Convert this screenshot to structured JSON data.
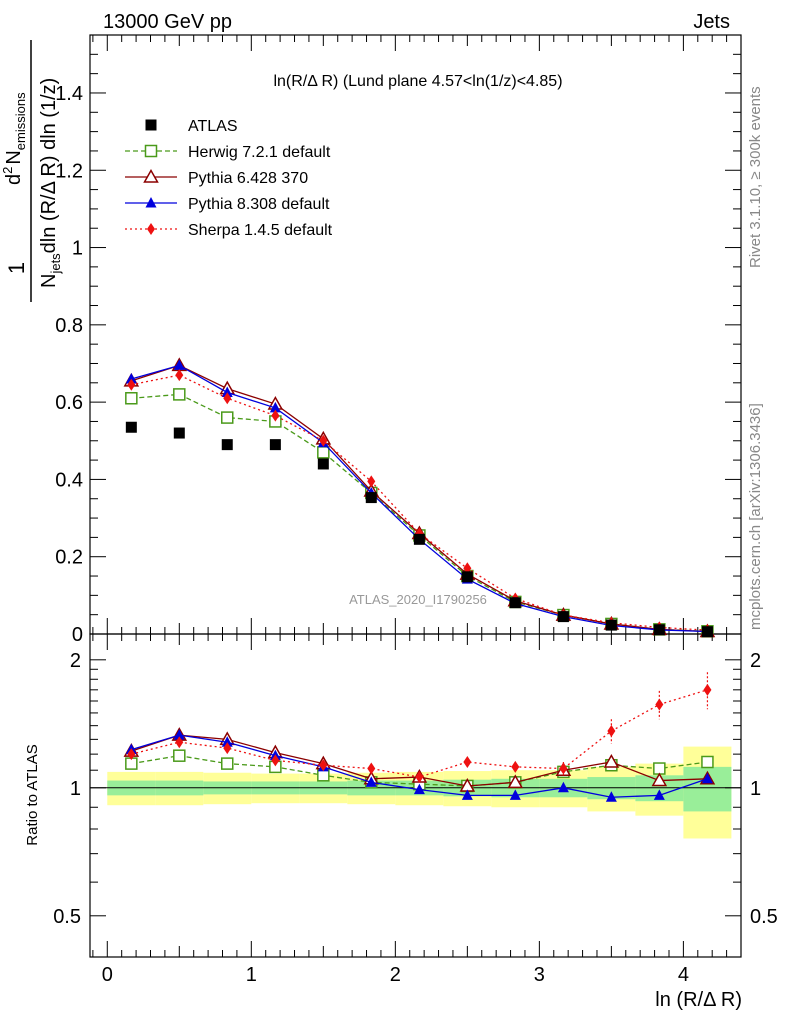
{
  "header": {
    "energy": "13000 GeV pp",
    "process": "Jets",
    "subtitle": "ln(R/Δ R) (Lund plane 4.57<ln(1/z)<4.85)",
    "watermark": "ATLAS_2020_I1790256",
    "rivet": "Rivet 3.1.10, ≥ 300k events",
    "mcplots": "mcplots.cern.ch [arXiv:1306.3436]"
  },
  "chart_data": {
    "type": "line",
    "x": [
      0.167,
      0.5,
      0.833,
      1.167,
      1.5,
      1.833,
      2.167,
      2.5,
      2.833,
      3.167,
      3.5,
      3.833,
      4.167
    ],
    "xlabel": "ln (R/Δ R)",
    "xlim": [
      -0.12,
      4.4
    ],
    "xticks": [
      "0",
      "1",
      "2",
      "3",
      "4"
    ],
    "xtick_values": [
      0,
      1,
      2,
      3,
      4
    ],
    "main": {
      "ylabel_parts": {
        "one": "1",
        "n_jets": "N",
        "n_jets_sub": "jets",
        "dln": "dln (R/Δ R) dln (1/z)",
        "d2": "d",
        "d2_sup": "2",
        "n_em": "N",
        "n_em_sub": "emissions"
      },
      "ylim": [
        0,
        1.55
      ],
      "yticks": [
        "0",
        "0.2",
        "0.4",
        "0.6",
        "0.8",
        "1",
        "1.2",
        "1.4"
      ],
      "ytick_values": [
        0,
        0.2,
        0.4,
        0.6,
        0.8,
        1.0,
        1.2,
        1.4
      ]
    },
    "ratio": {
      "ylabel": "Ratio to ATLAS",
      "ylim": [
        0.4,
        2.3
      ],
      "yticks_left": [
        "0.5",
        "1",
        "2"
      ],
      "yticks_right": [
        "0.5",
        "1",
        "2"
      ],
      "ytick_values": [
        0.5,
        1,
        2
      ],
      "band_inner": [
        [
          0.96,
          1.04
        ],
        [
          0.96,
          1.04
        ],
        [
          0.965,
          1.035
        ],
        [
          0.965,
          1.035
        ],
        [
          0.965,
          1.035
        ],
        [
          0.96,
          1.04
        ],
        [
          0.96,
          1.04
        ],
        [
          0.955,
          1.045
        ],
        [
          0.95,
          1.05
        ],
        [
          0.95,
          1.05
        ],
        [
          0.94,
          1.06
        ],
        [
          0.93,
          1.07
        ],
        [
          0.88,
          1.12
        ]
      ],
      "band_outer": [
        [
          0.91,
          1.09
        ],
        [
          0.91,
          1.09
        ],
        [
          0.915,
          1.085
        ],
        [
          0.92,
          1.08
        ],
        [
          0.92,
          1.08
        ],
        [
          0.915,
          1.085
        ],
        [
          0.91,
          1.09
        ],
        [
          0.905,
          1.095
        ],
        [
          0.9,
          1.1
        ],
        [
          0.9,
          1.1
        ],
        [
          0.88,
          1.12
        ],
        [
          0.86,
          1.14
        ],
        [
          0.76,
          1.25
        ]
      ]
    },
    "series": [
      {
        "name": "ATLAS",
        "color": "#000000",
        "style": "data",
        "marker": "square-filled",
        "values": [
          0.535,
          0.52,
          0.49,
          0.49,
          0.44,
          0.353,
          0.245,
          0.148,
          0.081,
          0.045,
          0.023,
          0.011,
          0.006
        ]
      },
      {
        "name": "Herwig 7.2.1 default",
        "color": "#4a9a1a",
        "style": "dashed",
        "marker": "square-open",
        "values": [
          0.61,
          0.62,
          0.56,
          0.55,
          0.47,
          0.365,
          0.255,
          0.15,
          0.083,
          0.049,
          0.026,
          0.012,
          0.007
        ],
        "ratio": [
          1.14,
          1.19,
          1.14,
          1.12,
          1.07,
          1.03,
          1.02,
          1.01,
          1.03,
          1.09,
          1.13,
          1.11,
          1.15
        ]
      },
      {
        "name": "Pythia 6.428 370",
        "color": "#8b0000",
        "style": "solid",
        "marker": "triangle-open",
        "values": [
          0.655,
          0.695,
          0.635,
          0.595,
          0.505,
          0.37,
          0.26,
          0.155,
          0.086,
          0.049,
          0.026,
          0.012,
          0.0065
        ],
        "ratio": [
          1.22,
          1.33,
          1.3,
          1.21,
          1.14,
          1.05,
          1.06,
          1.01,
          1.03,
          1.1,
          1.15,
          1.04,
          1.05
        ]
      },
      {
        "name": "Pythia 8.308 default",
        "color": "#0000dd",
        "style": "solid",
        "marker": "triangle-filled",
        "values": [
          0.66,
          0.695,
          0.625,
          0.585,
          0.495,
          0.365,
          0.245,
          0.142,
          0.079,
          0.045,
          0.022,
          0.0105,
          0.0065
        ],
        "ratio": [
          1.23,
          1.33,
          1.28,
          1.19,
          1.12,
          1.03,
          0.99,
          0.96,
          0.96,
          1.0,
          0.95,
          0.96,
          1.05
        ]
      },
      {
        "name": "Sherpa 1.4.5 default",
        "color": "#ee1111",
        "style": "dotted",
        "marker": "diamond-filled",
        "values": [
          0.645,
          0.67,
          0.61,
          0.565,
          0.5,
          0.395,
          0.26,
          0.17,
          0.092,
          0.049,
          0.029,
          0.017,
          0.01
        ],
        "ratio": [
          1.2,
          1.28,
          1.24,
          1.16,
          1.13,
          1.11,
          1.06,
          1.15,
          1.12,
          1.11,
          1.36,
          1.57,
          1.7
        ],
        "ratio_err": [
          0.01,
          0.01,
          0.01,
          0.01,
          0.01,
          0.01,
          0.01,
          0.02,
          0.03,
          0.04,
          0.09,
          0.12,
          0.17
        ]
      }
    ]
  }
}
